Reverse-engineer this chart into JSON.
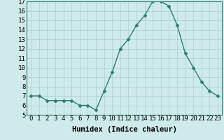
{
  "x": [
    0,
    1,
    2,
    3,
    4,
    5,
    6,
    7,
    8,
    9,
    10,
    11,
    12,
    13,
    14,
    15,
    16,
    17,
    18,
    19,
    20,
    21,
    22,
    23
  ],
  "y": [
    7.0,
    7.0,
    6.5,
    6.5,
    6.5,
    6.5,
    6.0,
    6.0,
    5.5,
    7.5,
    9.5,
    12.0,
    13.0,
    14.5,
    15.5,
    17.0,
    17.0,
    16.5,
    14.5,
    11.5,
    10.0,
    8.5,
    7.5,
    7.0
  ],
  "xlabel": "Humidex (Indice chaleur)",
  "ylim": [
    5,
    17
  ],
  "xlim": [
    -0.5,
    23.5
  ],
  "yticks": [
    5,
    6,
    7,
    8,
    9,
    10,
    11,
    12,
    13,
    14,
    15,
    16,
    17
  ],
  "xticks": [
    0,
    1,
    2,
    3,
    4,
    5,
    6,
    7,
    8,
    9,
    10,
    11,
    12,
    13,
    14,
    15,
    16,
    17,
    18,
    19,
    20,
    21,
    22,
    23
  ],
  "xtick_labels": [
    "0",
    "1",
    "2",
    "3",
    "4",
    "5",
    "6",
    "7",
    "8",
    "9",
    "10",
    "11",
    "12",
    "13",
    "14",
    "15",
    "16",
    "17",
    "18",
    "19",
    "20",
    "21",
    "22",
    "23"
  ],
  "line_color": "#2e7d6e",
  "marker": "D",
  "marker_size": 2.5,
  "line_width": 1.0,
  "bg_color": "#ceeaea",
  "grid_color": "#aacece",
  "tick_fontsize": 6.5,
  "xlabel_fontsize": 7.5
}
